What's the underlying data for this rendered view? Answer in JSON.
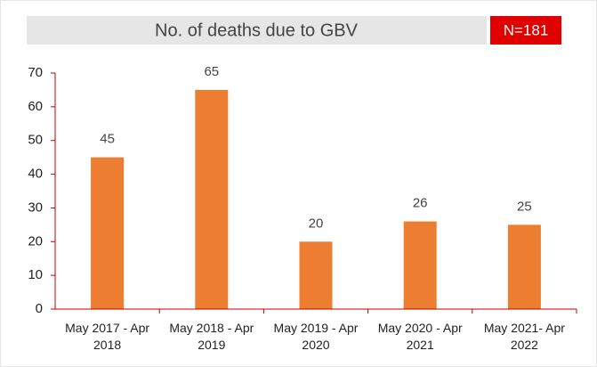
{
  "chart_data": {
    "type": "bar",
    "title": "No. of deaths due to GBV",
    "annotation": "N=181",
    "categories": [
      "May 2017 - Apr 2018",
      "May 2018 - Apr 2019",
      "May 2019 - Apr 2020",
      "May 2020 - Apr 2021",
      "May 2021- Apr 2022"
    ],
    "values": [
      45,
      65,
      20,
      26,
      25
    ],
    "color": "#ed7d31",
    "ylim": [
      0,
      70
    ],
    "yticks": [
      0,
      10,
      20,
      30,
      40,
      50,
      60,
      70
    ],
    "grid": false
  }
}
